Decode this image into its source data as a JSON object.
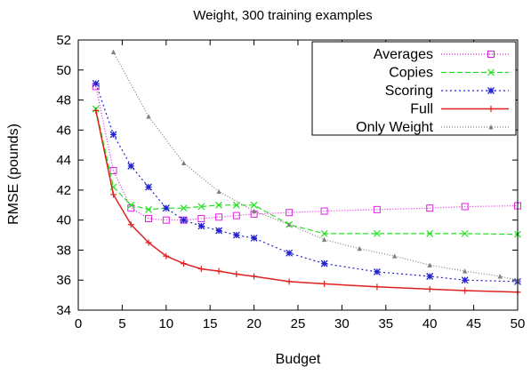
{
  "chart_data": {
    "type": "line",
    "title": "Weight, 300 training examples",
    "xlabel": "Budget",
    "ylabel": "RMSE (pounds)",
    "xlim": [
      0,
      50
    ],
    "ylim": [
      34,
      52
    ],
    "xticks": [
      0,
      5,
      10,
      15,
      20,
      25,
      30,
      35,
      40,
      45,
      50
    ],
    "yticks": [
      34,
      36,
      38,
      40,
      42,
      44,
      46,
      48,
      50,
      52
    ],
    "grid": false,
    "legend_position": "top-right",
    "series": [
      {
        "name": "Averages",
        "color": "#e020e0",
        "dash": "1,2",
        "marker": "open-square",
        "x": [
          2,
          4,
          6,
          8,
          10,
          12,
          14,
          16,
          18,
          20,
          24,
          28,
          34,
          40,
          44,
          50
        ],
        "y": [
          48.9,
          43.3,
          40.8,
          40.1,
          40.0,
          40.0,
          40.1,
          40.2,
          40.3,
          40.4,
          40.5,
          40.6,
          40.7,
          40.8,
          40.9,
          40.95
        ]
      },
      {
        "name": "Copies",
        "color": "#20e020",
        "dash": "6,3",
        "marker": "cross",
        "x": [
          2,
          4,
          6,
          8,
          10,
          12,
          14,
          16,
          18,
          20,
          24,
          28,
          34,
          40,
          44,
          50
        ],
        "y": [
          47.4,
          42.2,
          41.0,
          40.7,
          40.8,
          40.8,
          40.9,
          41.0,
          41.0,
          41.0,
          39.7,
          39.1,
          39.1,
          39.1,
          39.1,
          39.05
        ]
      },
      {
        "name": "Scoring",
        "color": "#2020d0",
        "dash": "2,3",
        "marker": "star",
        "x": [
          2,
          4,
          6,
          8,
          10,
          12,
          14,
          16,
          18,
          20,
          24,
          28,
          34,
          40,
          44,
          50
        ],
        "y": [
          49.1,
          45.7,
          43.6,
          42.2,
          40.8,
          40.0,
          39.6,
          39.3,
          39.0,
          38.8,
          37.8,
          37.1,
          36.55,
          36.25,
          36.0,
          35.9
        ]
      },
      {
        "name": "Full",
        "color": "#e02020",
        "dash": "",
        "marker": "plus",
        "x": [
          2,
          4,
          6,
          8,
          10,
          12,
          14,
          16,
          18,
          20,
          24,
          28,
          34,
          40,
          44,
          50
        ],
        "y": [
          47.3,
          41.7,
          39.7,
          38.5,
          37.6,
          37.1,
          36.75,
          36.6,
          36.4,
          36.25,
          35.9,
          35.75,
          35.55,
          35.4,
          35.3,
          35.2
        ]
      },
      {
        "name": "Only Weight",
        "color": "#808080",
        "dash": "1,2",
        "marker": "triangle",
        "x": [
          4,
          8,
          12,
          16,
          20,
          24,
          28,
          32,
          36,
          40,
          44,
          48,
          50
        ],
        "y": [
          51.2,
          46.9,
          43.8,
          41.9,
          40.6,
          39.7,
          38.7,
          38.1,
          37.6,
          37.0,
          36.6,
          36.25,
          36.0
        ]
      }
    ]
  }
}
